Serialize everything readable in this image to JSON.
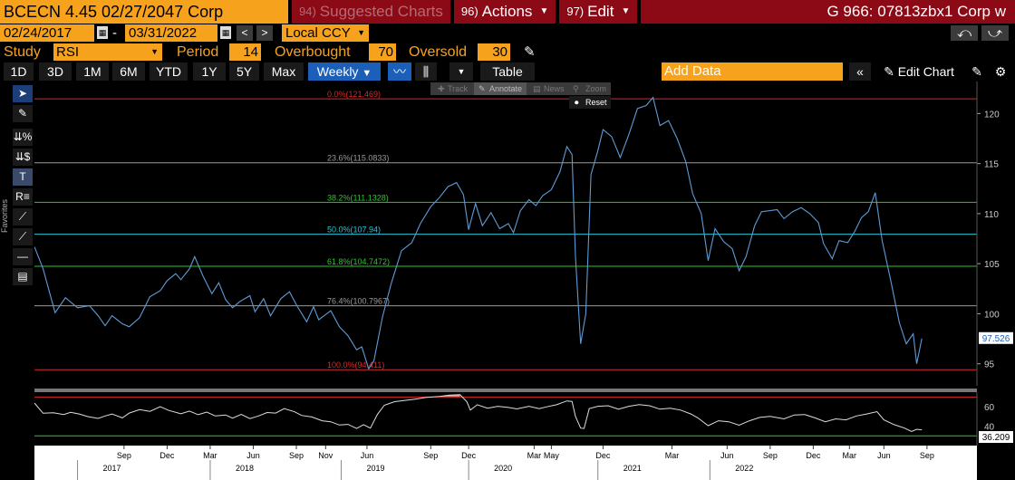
{
  "header": {
    "ticker": "BCECN 4.45 02/27/2047 Corp",
    "suggested_num": "94)",
    "suggested_label": "Suggested Charts",
    "actions_num": "96)",
    "actions_label": "Actions",
    "edit_num": "97)",
    "edit_label": "Edit",
    "graph_title": "G 966: 07813zbx1 Corp w"
  },
  "dates": {
    "start": "02/24/2017",
    "separator": "-",
    "end": "03/31/2022",
    "currency": "Local CCY"
  },
  "study": {
    "study_label": "Study",
    "study_value": "RSI",
    "period_label": "Period",
    "period_value": "14",
    "overbought_label": "Overbought",
    "overbought_value": "70",
    "oversold_label": "Oversold",
    "oversold_value": "30"
  },
  "toolbar": {
    "ranges": [
      "1D",
      "3D",
      "1M",
      "6M",
      "YTD",
      "1Y",
      "5Y",
      "Max"
    ],
    "frequency": "Weekly",
    "table_label": "Table",
    "add_data_placeholder": "Add Data",
    "edit_chart_label": "Edit Chart"
  },
  "overlay": {
    "track": "Track",
    "annotate": "Annotate",
    "news": "News",
    "zoom": "Zoom",
    "reset": "Reset"
  },
  "sidebar": {
    "favorites": "Favorites"
  },
  "colors": {
    "orange": "#f7a21d",
    "menu_red": "#8b0a15",
    "price_line": "#5f9bd5",
    "red_line": "#d42b2b",
    "green_line": "#31c431",
    "cyan_line": "#29c5d6",
    "gray_line": "#9a9a9a"
  },
  "chart_data": {
    "type": "line",
    "price_axis": {
      "ticks": [
        "120",
        "115",
        "110",
        "105",
        "100",
        "95"
      ],
      "ylim": [
        92.8,
        123.2
      ],
      "last_value": "97.526"
    },
    "fib_levels": [
      {
        "label": "0.0%(121.469)",
        "value": 121.469,
        "color": "#d42b2b"
      },
      {
        "label": "23.6%(115.0833)",
        "value": 115.0833,
        "color": "#9a9a9a"
      },
      {
        "label": "38.2%(111.1328)",
        "value": 111.1328,
        "color": "#31c431"
      },
      {
        "label": "50.0%(107.94)",
        "value": 107.94,
        "color": "#29c5d6"
      },
      {
        "label": "61.8%(104.7472)",
        "value": 104.7472,
        "color": "#31c431"
      },
      {
        "label": "76.4%(100.7967)",
        "value": 100.7967,
        "color": "#9a9a9a"
      },
      {
        "label": "100.0%(94.411)",
        "value": 94.411,
        "color": "#d42b2b"
      }
    ],
    "price_series": [
      [
        2017.15,
        106.7
      ],
      [
        2017.2,
        104.5
      ],
      [
        2017.27,
        100.1
      ],
      [
        2017.33,
        101.6
      ],
      [
        2017.4,
        100.6
      ],
      [
        2017.47,
        100.8
      ],
      [
        2017.52,
        99.8
      ],
      [
        2017.56,
        98.8
      ],
      [
        2017.6,
        99.8
      ],
      [
        2017.66,
        99.0
      ],
      [
        2017.7,
        98.7
      ],
      [
        2017.76,
        99.6
      ],
      [
        2017.82,
        101.7
      ],
      [
        2017.88,
        102.3
      ],
      [
        2017.92,
        103.3
      ],
      [
        2017.97,
        104.0
      ],
      [
        2018.0,
        103.4
      ],
      [
        2018.05,
        104.5
      ],
      [
        2018.08,
        105.7
      ],
      [
        2018.13,
        103.7
      ],
      [
        2018.18,
        102.0
      ],
      [
        2018.22,
        103.1
      ],
      [
        2018.26,
        101.4
      ],
      [
        2018.3,
        100.6
      ],
      [
        2018.34,
        101.2
      ],
      [
        2018.4,
        101.8
      ],
      [
        2018.43,
        100.2
      ],
      [
        2018.48,
        101.5
      ],
      [
        2018.52,
        99.8
      ],
      [
        2018.58,
        101.5
      ],
      [
        2018.63,
        102.2
      ],
      [
        2018.67,
        100.9
      ],
      [
        2018.73,
        99.2
      ],
      [
        2018.77,
        100.7
      ],
      [
        2018.8,
        99.4
      ],
      [
        2018.87,
        100.3
      ],
      [
        2018.92,
        98.7
      ],
      [
        2018.97,
        97.8
      ],
      [
        2019.02,
        96.4
      ],
      [
        2019.05,
        96.7
      ],
      [
        2019.09,
        94.5
      ],
      [
        2019.12,
        95.3
      ],
      [
        2019.17,
        99.7
      ],
      [
        2019.22,
        103.0
      ],
      [
        2019.28,
        106.3
      ],
      [
        2019.34,
        107.1
      ],
      [
        2019.39,
        109.0
      ],
      [
        2019.45,
        110.7
      ],
      [
        2019.5,
        111.6
      ],
      [
        2019.55,
        112.7
      ],
      [
        2019.6,
        113.1
      ],
      [
        2019.64,
        111.9
      ],
      [
        2019.67,
        108.4
      ],
      [
        2019.71,
        111.0
      ],
      [
        2019.75,
        108.8
      ],
      [
        2019.8,
        110.1
      ],
      [
        2019.85,
        108.5
      ],
      [
        2019.9,
        109.0
      ],
      [
        2019.93,
        108.1
      ],
      [
        2019.97,
        110.3
      ],
      [
        2020.02,
        111.4
      ],
      [
        2020.06,
        110.8
      ],
      [
        2020.1,
        111.8
      ],
      [
        2020.15,
        112.4
      ],
      [
        2020.2,
        114.2
      ],
      [
        2020.24,
        116.7
      ],
      [
        2020.27,
        115.9
      ],
      [
        2020.29,
        105.7
      ],
      [
        2020.32,
        97.0
      ],
      [
        2020.35,
        100.0
      ],
      [
        2020.38,
        113.9
      ],
      [
        2020.42,
        116.3
      ],
      [
        2020.45,
        118.4
      ],
      [
        2020.5,
        117.7
      ],
      [
        2020.55,
        115.6
      ],
      [
        2020.6,
        117.9
      ],
      [
        2020.65,
        120.5
      ],
      [
        2020.7,
        120.8
      ],
      [
        2020.74,
        121.6
      ],
      [
        2020.78,
        118.8
      ],
      [
        2020.83,
        119.3
      ],
      [
        2020.88,
        117.5
      ],
      [
        2020.93,
        115.2
      ],
      [
        2020.97,
        112.0
      ],
      [
        2021.02,
        110.0
      ],
      [
        2021.06,
        105.3
      ],
      [
        2021.1,
        108.5
      ],
      [
        2021.15,
        107.2
      ],
      [
        2021.2,
        106.5
      ],
      [
        2021.24,
        104.3
      ],
      [
        2021.28,
        105.7
      ],
      [
        2021.33,
        108.8
      ],
      [
        2021.37,
        110.2
      ],
      [
        2021.42,
        110.3
      ],
      [
        2021.46,
        110.4
      ],
      [
        2021.5,
        109.5
      ],
      [
        2021.55,
        110.2
      ],
      [
        2021.6,
        110.6
      ],
      [
        2021.65,
        110.0
      ],
      [
        2021.7,
        109.1
      ],
      [
        2021.73,
        107.0
      ],
      [
        2021.78,
        105.5
      ],
      [
        2021.82,
        107.3
      ],
      [
        2021.87,
        107.1
      ],
      [
        2021.91,
        108.2
      ],
      [
        2021.95,
        109.6
      ],
      [
        2021.99,
        110.2
      ],
      [
        2022.03,
        112.1
      ],
      [
        2022.07,
        107.3
      ],
      [
        2022.12,
        103.3
      ],
      [
        2022.17,
        99.1
      ],
      [
        2022.21,
        97.0
      ],
      [
        2022.25,
        98.0
      ],
      [
        2022.27,
        95.0
      ],
      [
        2022.3,
        97.526
      ]
    ],
    "rsi_axis": {
      "ticks": [
        "60",
        "40"
      ],
      "last_value": "36.209"
    },
    "rsi_series": [
      [
        2017.15,
        63.8
      ],
      [
        2017.2,
        53.3
      ],
      [
        2017.26,
        53.8
      ],
      [
        2017.32,
        52.0
      ],
      [
        2017.36,
        54.2
      ],
      [
        2017.41,
        52.5
      ],
      [
        2017.46,
        49.8
      ],
      [
        2017.52,
        48.0
      ],
      [
        2017.56,
        50.5
      ],
      [
        2017.6,
        52.5
      ],
      [
        2017.66,
        48.5
      ],
      [
        2017.7,
        53.5
      ],
      [
        2017.76,
        57.0
      ],
      [
        2017.82,
        55.2
      ],
      [
        2017.88,
        60.0
      ],
      [
        2017.93,
        56.2
      ],
      [
        2018.0,
        52.8
      ],
      [
        2018.05,
        55.5
      ],
      [
        2018.1,
        51.8
      ],
      [
        2018.15,
        54.5
      ],
      [
        2018.2,
        50.5
      ],
      [
        2018.26,
        51.5
      ],
      [
        2018.3,
        48.2
      ],
      [
        2018.35,
        52.2
      ],
      [
        2018.4,
        47.8
      ],
      [
        2018.45,
        50.5
      ],
      [
        2018.5,
        54.0
      ],
      [
        2018.55,
        53.5
      ],
      [
        2018.6,
        58.0
      ],
      [
        2018.66,
        54.8
      ],
      [
        2018.7,
        51.0
      ],
      [
        2018.76,
        49.5
      ],
      [
        2018.82,
        45.5
      ],
      [
        2018.87,
        44.5
      ],
      [
        2018.92,
        41.2
      ],
      [
        2018.97,
        41.8
      ],
      [
        2019.02,
        37.6
      ],
      [
        2019.06,
        41.5
      ],
      [
        2019.1,
        38.0
      ],
      [
        2019.14,
        52.0
      ],
      [
        2019.18,
        61.5
      ],
      [
        2019.24,
        65.2
      ],
      [
        2019.3,
        66.5
      ],
      [
        2019.36,
        67.8
      ],
      [
        2019.42,
        69.5
      ],
      [
        2019.5,
        70.5
      ],
      [
        2019.56,
        72.0
      ],
      [
        2019.62,
        72.5
      ],
      [
        2019.66,
        65.0
      ],
      [
        2019.68,
        56.5
      ],
      [
        2019.72,
        62.0
      ],
      [
        2019.78,
        58.5
      ],
      [
        2019.84,
        60.5
      ],
      [
        2019.9,
        59.2
      ],
      [
        2019.95,
        57.8
      ],
      [
        2020.02,
        60.5
      ],
      [
        2020.08,
        58.0
      ],
      [
        2020.12,
        59.8
      ],
      [
        2020.18,
        62.0
      ],
      [
        2020.24,
        66.0
      ],
      [
        2020.27,
        65.5
      ],
      [
        2020.29,
        50.0
      ],
      [
        2020.32,
        38.0
      ],
      [
        2020.34,
        37.6
      ],
      [
        2020.37,
        58.0
      ],
      [
        2020.42,
        60.5
      ],
      [
        2020.48,
        61.0
      ],
      [
        2020.54,
        57.5
      ],
      [
        2020.6,
        60.5
      ],
      [
        2020.66,
        62.2
      ],
      [
        2020.72,
        61.0
      ],
      [
        2020.78,
        57.5
      ],
      [
        2020.84,
        58.5
      ],
      [
        2020.9,
        56.5
      ],
      [
        2020.96,
        52.5
      ],
      [
        2021.0,
        48.5
      ],
      [
        2021.06,
        40.5
      ],
      [
        2021.12,
        45.5
      ],
      [
        2021.18,
        44.5
      ],
      [
        2021.24,
        41.0
      ],
      [
        2021.3,
        45.5
      ],
      [
        2021.36,
        49.0
      ],
      [
        2021.42,
        50.0
      ],
      [
        2021.5,
        47.5
      ],
      [
        2021.56,
        51.5
      ],
      [
        2021.62,
        52.0
      ],
      [
        2021.68,
        48.5
      ],
      [
        2021.74,
        44.5
      ],
      [
        2021.8,
        47.5
      ],
      [
        2021.86,
        46.5
      ],
      [
        2021.92,
        50.5
      ],
      [
        2021.98,
        52.5
      ],
      [
        2022.04,
        55.0
      ],
      [
        2022.08,
        46.5
      ],
      [
        2022.14,
        41.5
      ],
      [
        2022.2,
        38.0
      ],
      [
        2022.24,
        34.5
      ],
      [
        2022.27,
        36.8
      ],
      [
        2022.3,
        36.209
      ]
    ],
    "rsi_overbought": 70,
    "rsi_oversold": 30,
    "x_axis": {
      "month_ticks": [
        {
          "label": "Sep",
          "t": 2017.67
        },
        {
          "label": "Dec",
          "t": 2017.92
        },
        {
          "label": "Mar",
          "t": 2018.17
        },
        {
          "label": "Jun",
          "t": 2018.42
        },
        {
          "label": "Sep",
          "t": 2018.67
        },
        {
          "label": "Nov",
          "t": 2018.84
        },
        {
          "label": "Jun",
          "t": 2019.08
        },
        {
          "label": "Sep",
          "t": 2019.45
        },
        {
          "label": "Dec",
          "t": 2019.67
        },
        {
          "label": "Mar",
          "t": 2020.05
        },
        {
          "label": "May",
          "t": 2020.15
        },
        {
          "label": "Dec",
          "t": 2020.45
        },
        {
          "label": "Mar",
          "t": 2020.85
        },
        {
          "label": "Jun",
          "t": 2021.17
        },
        {
          "label": "Sep",
          "t": 2021.42
        },
        {
          "label": "Dec",
          "t": 2021.67
        },
        {
          "label": "Mar",
          "t": 2021.88
        },
        {
          "label": "Jun",
          "t": 2022.08
        },
        {
          "label": "Sep",
          "t": 2022.33
        }
      ],
      "year_labels": [
        {
          "label": "2017",
          "t": 2017.6
        },
        {
          "label": "2018",
          "t": 2018.37
        },
        {
          "label": "2019",
          "t": 2019.13
        },
        {
          "label": "2020",
          "t": 2019.87
        },
        {
          "label": "2021",
          "t": 2020.62
        },
        {
          "label": "2022",
          "t": 2021.27
        }
      ],
      "xlim": [
        2017.15,
        2022.62
      ]
    }
  }
}
